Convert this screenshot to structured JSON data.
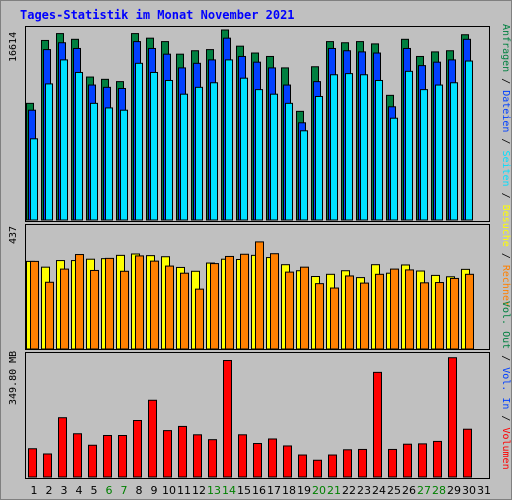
{
  "title": "Tages-Statistik im Monat November 2021",
  "colors": {
    "background": "#c0c0c0",
    "frame": "#808080",
    "title": "#0000ff",
    "anfragen": "#008040",
    "dateien": "#0040ff",
    "seiten": "#00e0ff",
    "besuche": "#ffff00",
    "rechner": "#ff8000",
    "volumen": "#ff0000",
    "weekend_label": "#008000",
    "grid": "#808080"
  },
  "chart_data": [
    {
      "type": "bar",
      "title": "",
      "top_tick_label": "16614",
      "ylim": [
        0,
        16614
      ],
      "x": [
        1,
        2,
        3,
        4,
        5,
        6,
        7,
        8,
        9,
        10,
        11,
        12,
        13,
        14,
        15,
        16,
        17,
        18,
        19,
        20,
        21,
        22,
        23,
        24,
        25,
        26,
        27,
        28,
        29,
        30
      ],
      "series": [
        {
          "name": "Anfragen",
          "values": [
            10200,
            15700,
            16300,
            15800,
            12500,
            12300,
            12100,
            16300,
            15900,
            15600,
            14500,
            14800,
            14900,
            16614,
            15200,
            14600,
            14300,
            13300,
            9500,
            13400,
            15600,
            15500,
            15600,
            15400,
            10900,
            15800,
            14300,
            14700,
            14800,
            16200
          ]
        },
        {
          "name": "Dateien",
          "values": [
            9600,
            14900,
            15500,
            15000,
            11800,
            11600,
            11500,
            15600,
            15000,
            14500,
            13300,
            13700,
            14000,
            15900,
            14300,
            13800,
            13300,
            11800,
            8500,
            12100,
            15000,
            14800,
            14700,
            14600,
            9900,
            15000,
            13500,
            13800,
            14000,
            15800
          ]
        },
        {
          "name": "Seiten",
          "values": [
            7100,
            11900,
            14000,
            12900,
            10200,
            9800,
            9600,
            13700,
            12900,
            12200,
            11000,
            11600,
            12000,
            14000,
            12400,
            11400,
            11000,
            10200,
            7800,
            10800,
            12700,
            12800,
            12700,
            12200,
            8900,
            13000,
            11400,
            11800,
            12000,
            13900
          ]
        }
      ]
    },
    {
      "type": "bar",
      "title": "",
      "top_tick_label": "437",
      "ylim": [
        0,
        437
      ],
      "x": [
        1,
        2,
        3,
        4,
        5,
        6,
        7,
        8,
        9,
        10,
        11,
        12,
        13,
        14,
        15,
        16,
        17,
        18,
        19,
        20,
        21,
        22,
        23,
        24,
        25,
        26,
        27,
        28,
        29,
        30
      ],
      "series": [
        {
          "name": "Besuche",
          "values": [
            319,
            298,
            322,
            322,
            327,
            329,
            341,
            346,
            340,
            336,
            297,
            283,
            313,
            327,
            326,
            341,
            333,
            307,
            285,
            264,
            272,
            285,
            260,
            307,
            276,
            306,
            284,
            268,
            263,
            290
          ]
        },
        {
          "name": "Rechner",
          "values": [
            319,
            243,
            291,
            344,
            286,
            330,
            283,
            339,
            320,
            302,
            276,
            218,
            311,
            337,
            345,
            390,
            347,
            280,
            298,
            238,
            222,
            266,
            240,
            272,
            291,
            288,
            241,
            242,
            257,
            272
          ]
        }
      ]
    },
    {
      "type": "bar",
      "title": "",
      "top_tick_label": "349.80 MB",
      "ylim": [
        0,
        349.8
      ],
      "x": [
        1,
        2,
        3,
        4,
        5,
        6,
        7,
        8,
        9,
        10,
        11,
        12,
        13,
        14,
        15,
        16,
        17,
        18,
        19,
        20,
        21,
        22,
        23,
        24,
        25,
        26,
        27,
        28,
        29,
        30
      ],
      "series": [
        {
          "name": "Volumen",
          "values": [
            81,
            66,
            170,
            124,
            91,
            119,
            119,
            162,
            220,
            133,
            145,
            121,
            107,
            334,
            121,
            96,
            109,
            89,
            63,
            48,
            63,
            78,
            79,
            300,
            79,
            94,
            95,
            102,
            342,
            137
          ]
        }
      ]
    }
  ],
  "x_ticks": [
    {
      "label": "1",
      "weekend": false
    },
    {
      "label": "2",
      "weekend": false
    },
    {
      "label": "3",
      "weekend": false
    },
    {
      "label": "4",
      "weekend": false
    },
    {
      "label": "5",
      "weekend": false
    },
    {
      "label": "6",
      "weekend": true
    },
    {
      "label": "7",
      "weekend": true
    },
    {
      "label": "8",
      "weekend": false
    },
    {
      "label": "9",
      "weekend": false
    },
    {
      "label": "10",
      "weekend": false
    },
    {
      "label": "11",
      "weekend": false
    },
    {
      "label": "12",
      "weekend": false
    },
    {
      "label": "13",
      "weekend": true
    },
    {
      "label": "14",
      "weekend": true
    },
    {
      "label": "15",
      "weekend": false
    },
    {
      "label": "16",
      "weekend": false
    },
    {
      "label": "17",
      "weekend": false
    },
    {
      "label": "18",
      "weekend": false
    },
    {
      "label": "19",
      "weekend": false
    },
    {
      "label": "20",
      "weekend": true
    },
    {
      "label": "21",
      "weekend": true
    },
    {
      "label": "22",
      "weekend": false
    },
    {
      "label": "23",
      "weekend": false
    },
    {
      "label": "24",
      "weekend": false
    },
    {
      "label": "25",
      "weekend": false
    },
    {
      "label": "26",
      "weekend": false
    },
    {
      "label": "27",
      "weekend": true
    },
    {
      "label": "28",
      "weekend": true
    },
    {
      "label": "29",
      "weekend": false
    },
    {
      "label": "30",
      "weekend": false
    },
    {
      "label": "31",
      "weekend": false
    }
  ],
  "legend": {
    "top": [
      {
        "text": "Anfragen",
        "color": "#008040"
      },
      {
        "text": "Dateien",
        "color": "#0040ff"
      },
      {
        "text": "Seiten",
        "color": "#00e0ff"
      },
      {
        "text": "Besuche",
        "color": "#ffff00"
      },
      {
        "text": "Rechner",
        "color": "#ff8000"
      }
    ],
    "bottom": [
      {
        "text": "Vol. Out",
        "color": "#008040"
      },
      {
        "text": "Vol. In",
        "color": "#0040ff"
      },
      {
        "text": "Volumen",
        "color": "#ff0000"
      }
    ],
    "separator": " / "
  }
}
